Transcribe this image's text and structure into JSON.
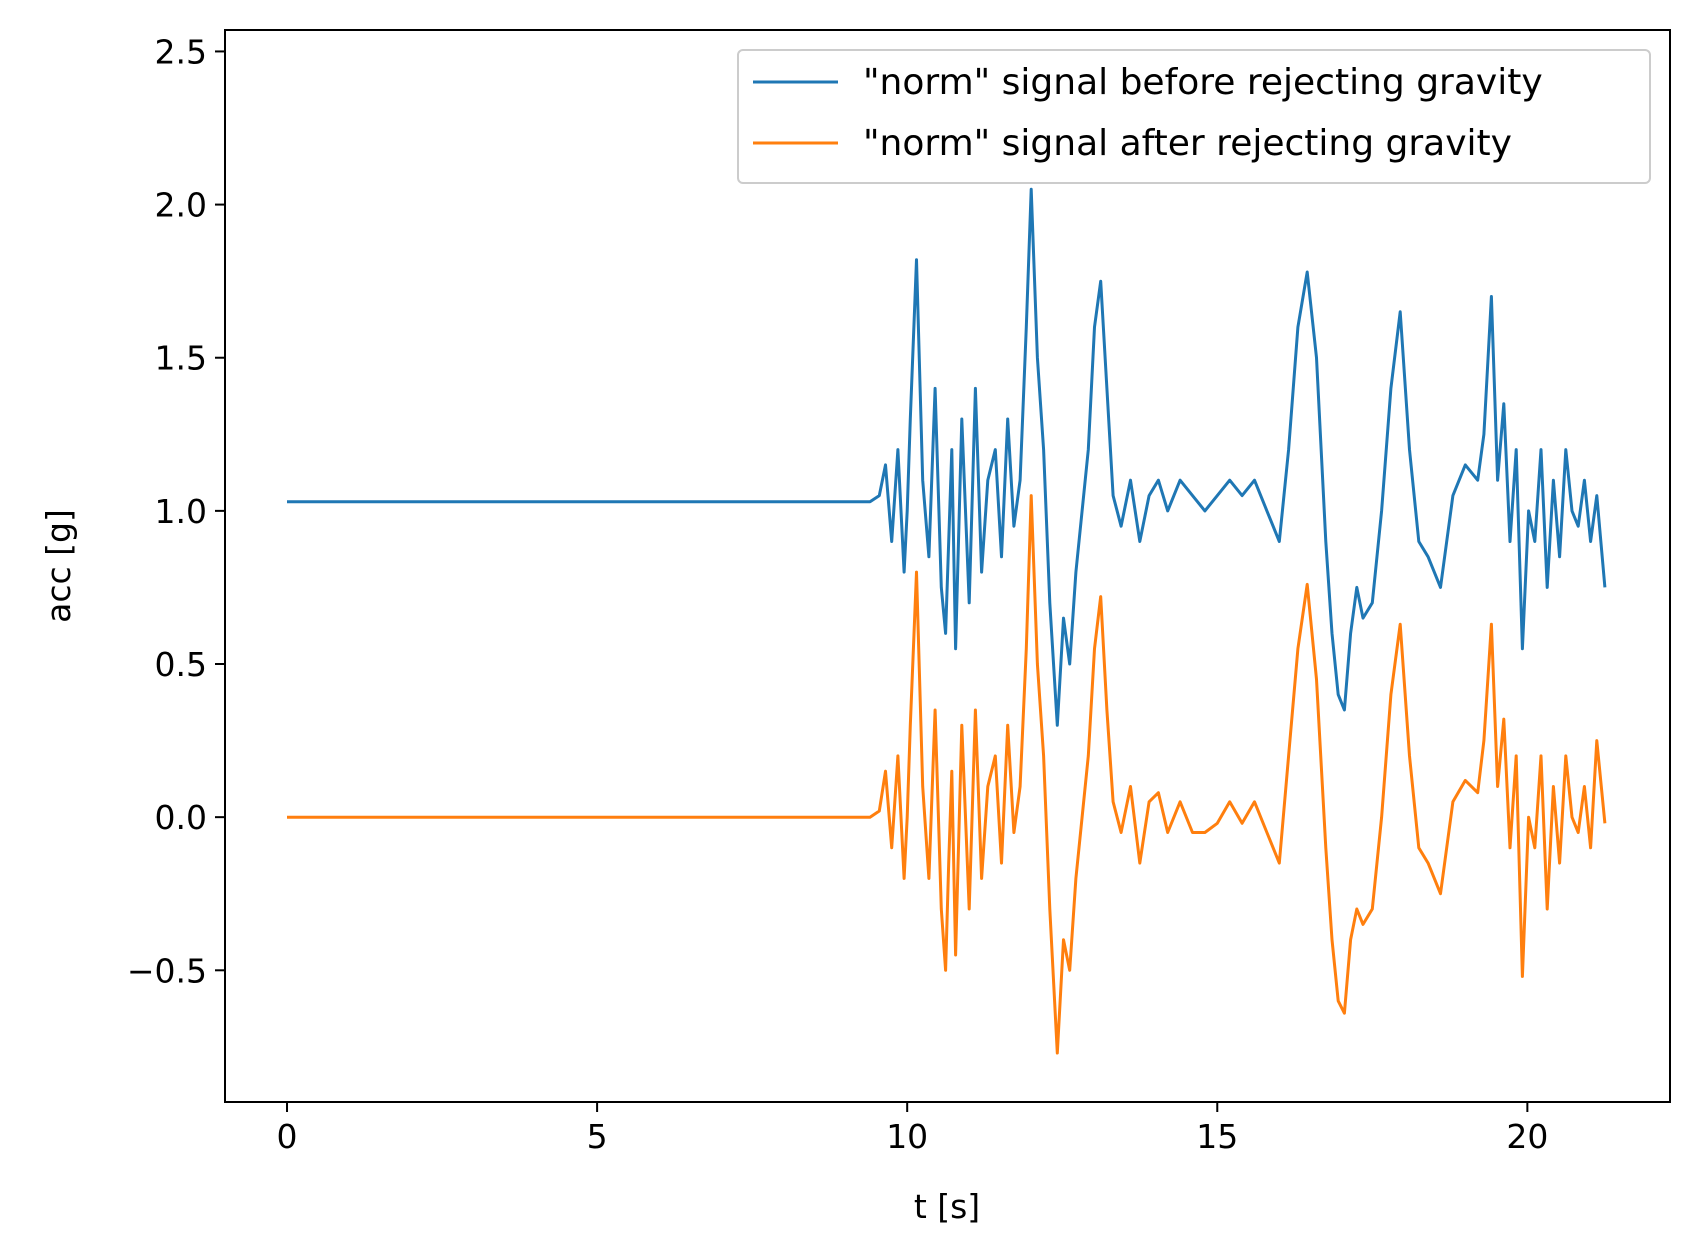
{
  "chart_data": {
    "type": "line",
    "title": "",
    "xlabel": "t [s]",
    "ylabel": "acc [g]",
    "xlim": [
      -1.0,
      22.3
    ],
    "ylim": [
      -0.93,
      2.57
    ],
    "x_ticks": [
      {
        "value": 0,
        "label": "0"
      },
      {
        "value": 5,
        "label": "5"
      },
      {
        "value": 10,
        "label": "10"
      },
      {
        "value": 15,
        "label": "15"
      },
      {
        "value": 20,
        "label": "20"
      }
    ],
    "y_ticks": [
      {
        "value": 2.5,
        "label": "2.5"
      },
      {
        "value": 2.0,
        "label": "2.0"
      },
      {
        "value": 1.5,
        "label": "1.5"
      },
      {
        "value": 1.0,
        "label": "1.0"
      },
      {
        "value": 0.5,
        "label": "0.5"
      },
      {
        "value": 0.0,
        "label": "0.0"
      },
      {
        "value": -0.5,
        "label": "−0.5"
      }
    ],
    "grid": false,
    "legend_position": "top-right",
    "series": [
      {
        "name": "\"norm\" signal before rejecting gravity",
        "color": "#1f77b4",
        "x": [
          0.0,
          1.0,
          2.0,
          3.0,
          4.0,
          5.0,
          6.0,
          7.0,
          8.0,
          9.0,
          9.4,
          9.55,
          9.65,
          9.75,
          9.85,
          9.95,
          10.0,
          10.05,
          10.15,
          10.25,
          10.35,
          10.45,
          10.55,
          10.62,
          10.67,
          10.72,
          10.78,
          10.88,
          11.0,
          11.1,
          11.2,
          11.3,
          11.42,
          11.52,
          11.62,
          11.72,
          11.82,
          11.92,
          12.0,
          12.1,
          12.2,
          12.3,
          12.42,
          12.52,
          12.62,
          12.72,
          12.82,
          12.92,
          13.02,
          13.12,
          13.22,
          13.32,
          13.45,
          13.6,
          13.75,
          13.9,
          14.05,
          14.2,
          14.4,
          14.6,
          14.8,
          15.0,
          15.2,
          15.4,
          15.6,
          15.8,
          16.0,
          16.15,
          16.3,
          16.45,
          16.6,
          16.75,
          16.85,
          16.95,
          17.05,
          17.15,
          17.25,
          17.35,
          17.5,
          17.65,
          17.8,
          17.95,
          18.1,
          18.25,
          18.4,
          18.6,
          18.8,
          19.0,
          19.2,
          19.3,
          19.42,
          19.52,
          19.62,
          19.72,
          19.82,
          19.92,
          20.02,
          20.12,
          20.22,
          20.32,
          20.42,
          20.52,
          20.62,
          20.72,
          20.82,
          20.92,
          21.02,
          21.12,
          21.25
        ],
        "y": [
          1.03,
          1.03,
          1.03,
          1.03,
          1.03,
          1.03,
          1.03,
          1.03,
          1.03,
          1.03,
          1.03,
          1.05,
          1.15,
          0.9,
          1.2,
          0.8,
          1.0,
          1.3,
          1.82,
          1.1,
          0.85,
          1.4,
          0.75,
          0.6,
          0.9,
          1.2,
          0.55,
          1.3,
          0.7,
          1.4,
          0.8,
          1.1,
          1.2,
          0.85,
          1.3,
          0.95,
          1.1,
          1.6,
          2.05,
          1.5,
          1.2,
          0.7,
          0.3,
          0.65,
          0.5,
          0.8,
          1.0,
          1.2,
          1.6,
          1.75,
          1.4,
          1.05,
          0.95,
          1.1,
          0.9,
          1.05,
          1.1,
          1.0,
          1.1,
          1.05,
          1.0,
          1.05,
          1.1,
          1.05,
          1.1,
          1.0,
          0.9,
          1.2,
          1.6,
          1.78,
          1.5,
          0.9,
          0.6,
          0.4,
          0.35,
          0.6,
          0.75,
          0.65,
          0.7,
          1.0,
          1.4,
          1.65,
          1.2,
          0.9,
          0.85,
          0.75,
          1.05,
          1.15,
          1.1,
          1.25,
          1.7,
          1.1,
          1.35,
          0.9,
          1.2,
          0.55,
          1.0,
          0.9,
          1.2,
          0.75,
          1.1,
          0.85,
          1.2,
          1.0,
          0.95,
          1.1,
          0.9,
          1.05,
          0.75
        ]
      },
      {
        "name": "\"norm\" signal after rejecting gravity",
        "color": "#ff7f0e",
        "x": [
          0.0,
          1.0,
          2.0,
          3.0,
          4.0,
          5.0,
          6.0,
          7.0,
          8.0,
          9.0,
          9.4,
          9.55,
          9.65,
          9.75,
          9.85,
          9.95,
          10.0,
          10.05,
          10.15,
          10.25,
          10.35,
          10.45,
          10.55,
          10.62,
          10.67,
          10.72,
          10.78,
          10.88,
          11.0,
          11.1,
          11.2,
          11.3,
          11.42,
          11.52,
          11.62,
          11.72,
          11.82,
          11.92,
          12.0,
          12.1,
          12.2,
          12.3,
          12.42,
          12.52,
          12.62,
          12.72,
          12.82,
          12.92,
          13.02,
          13.12,
          13.22,
          13.32,
          13.45,
          13.6,
          13.75,
          13.9,
          14.05,
          14.2,
          14.4,
          14.6,
          14.8,
          15.0,
          15.2,
          15.4,
          15.6,
          15.8,
          16.0,
          16.15,
          16.3,
          16.45,
          16.6,
          16.75,
          16.85,
          16.95,
          17.05,
          17.15,
          17.25,
          17.35,
          17.5,
          17.65,
          17.8,
          17.95,
          18.1,
          18.25,
          18.4,
          18.6,
          18.8,
          19.0,
          19.2,
          19.3,
          19.42,
          19.52,
          19.62,
          19.72,
          19.82,
          19.92,
          20.02,
          20.12,
          20.22,
          20.32,
          20.42,
          20.52,
          20.62,
          20.72,
          20.82,
          20.92,
          21.02,
          21.12,
          21.25
        ],
        "y": [
          0.0,
          0.0,
          0.0,
          0.0,
          0.0,
          0.0,
          0.0,
          0.0,
          0.0,
          0.0,
          0.0,
          0.02,
          0.15,
          -0.1,
          0.2,
          -0.2,
          0.0,
          0.3,
          0.8,
          0.1,
          -0.2,
          0.35,
          -0.3,
          -0.5,
          -0.15,
          0.15,
          -0.45,
          0.3,
          -0.3,
          0.35,
          -0.2,
          0.1,
          0.2,
          -0.15,
          0.3,
          -0.05,
          0.1,
          0.55,
          1.05,
          0.5,
          0.2,
          -0.3,
          -0.77,
          -0.4,
          -0.5,
          -0.2,
          0.0,
          0.2,
          0.55,
          0.72,
          0.35,
          0.05,
          -0.05,
          0.1,
          -0.15,
          0.05,
          0.08,
          -0.05,
          0.05,
          -0.05,
          -0.05,
          -0.02,
          0.05,
          -0.02,
          0.05,
          -0.05,
          -0.15,
          0.2,
          0.55,
          0.76,
          0.45,
          -0.1,
          -0.4,
          -0.6,
          -0.64,
          -0.4,
          -0.3,
          -0.35,
          -0.3,
          0.0,
          0.4,
          0.63,
          0.2,
          -0.1,
          -0.15,
          -0.25,
          0.05,
          0.12,
          0.08,
          0.25,
          0.63,
          0.1,
          0.32,
          -0.1,
          0.2,
          -0.52,
          0.0,
          -0.1,
          0.2,
          -0.3,
          0.1,
          -0.15,
          0.2,
          0.0,
          -0.05,
          0.1,
          -0.1,
          0.25,
          -0.02
        ]
      }
    ]
  }
}
